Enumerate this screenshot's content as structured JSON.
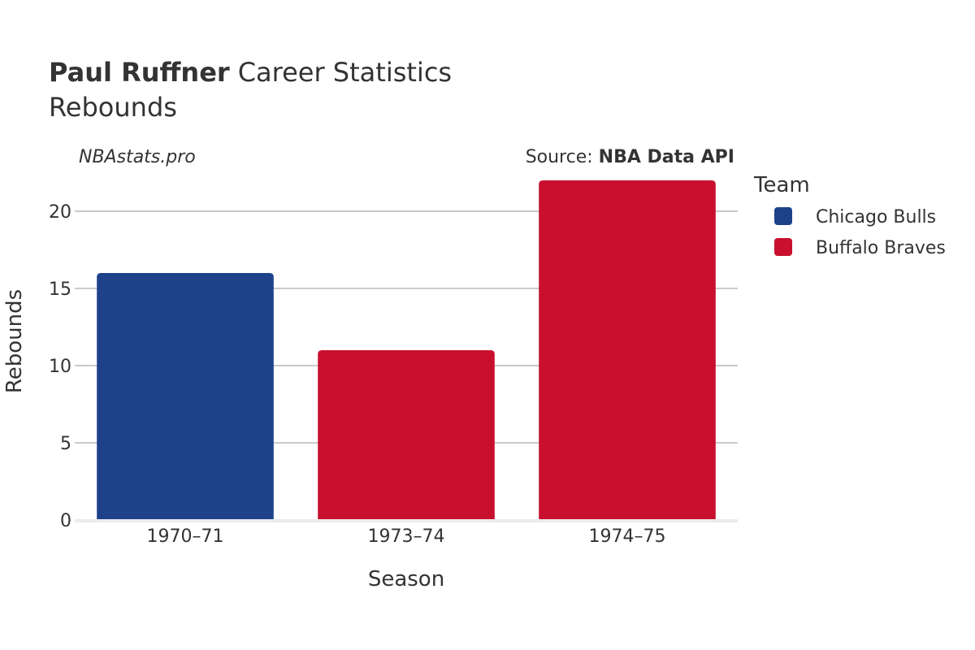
{
  "header": {
    "player_name": "Paul Ruffner",
    "title_rest": "Career Statistics",
    "subtitle": "Rebounds"
  },
  "brand": "NBAstats.pro",
  "source": {
    "prefix": "Source: ",
    "name": "NBA Data API"
  },
  "legend": {
    "title": "Team",
    "placement": "right",
    "items": [
      {
        "label": "Chicago Bulls",
        "color": "#1d428a"
      },
      {
        "label": "Buffalo Braves",
        "color": "#c8102e"
      }
    ]
  },
  "chart_data": {
    "type": "bar",
    "title": "Paul Ruffner Career Statistics",
    "subtitle": "Rebounds",
    "xlabel": "Season",
    "ylabel": "Rebounds",
    "categories": [
      "1970–71",
      "1973–74",
      "1974–75"
    ],
    "ylim": [
      0,
      22
    ],
    "yticks": [
      0,
      5,
      10,
      15,
      20
    ],
    "grid": true,
    "series": [
      {
        "name": "Chicago Bulls",
        "color": "#1d428a",
        "values": [
          16,
          null,
          null
        ]
      },
      {
        "name": "Buffalo Braves",
        "color": "#c8102e",
        "values": [
          null,
          11,
          22
        ]
      }
    ]
  }
}
